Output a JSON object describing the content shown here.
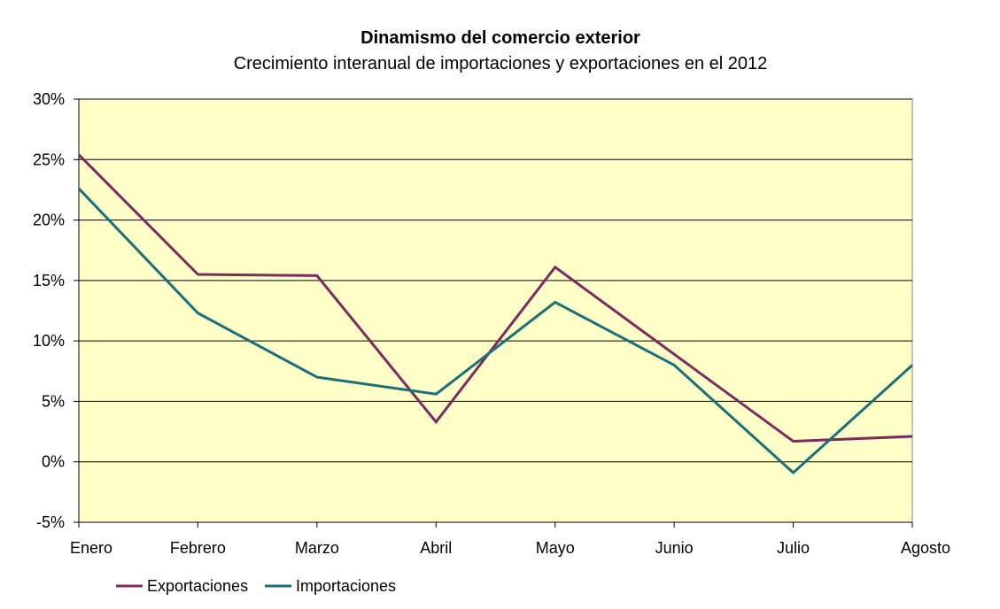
{
  "chart_data": {
    "type": "line",
    "title": "Dinamismo del comercio exterior",
    "subtitle": "Crecimiento interanual de importaciones y exportaciones en el 2012",
    "categories": [
      "Enero",
      "Febrero",
      "Marzo",
      "Abril",
      "Mayo",
      "Junio",
      "Julio",
      "Agosto"
    ],
    "series": [
      {
        "name": "Exportaciones",
        "color": "#7f2a5e",
        "values": [
          25.4,
          15.5,
          15.4,
          3.3,
          16.1,
          8.9,
          1.7,
          2.1
        ]
      },
      {
        "name": "Importaciones",
        "color": "#1a7078",
        "values": [
          22.6,
          12.3,
          7.0,
          5.6,
          13.2,
          8.0,
          -0.9,
          8.0
        ]
      }
    ],
    "ylim": [
      -5,
      30
    ],
    "yticks": [
      -5,
      0,
      5,
      10,
      15,
      20,
      25,
      30
    ],
    "ytick_labels": [
      "-5%",
      "0%",
      "5%",
      "10%",
      "15%",
      "20%",
      "25%",
      "30%"
    ],
    "grid": "horizontal",
    "plot_background": "#ffffc8",
    "legend_position": "bottom-left"
  }
}
